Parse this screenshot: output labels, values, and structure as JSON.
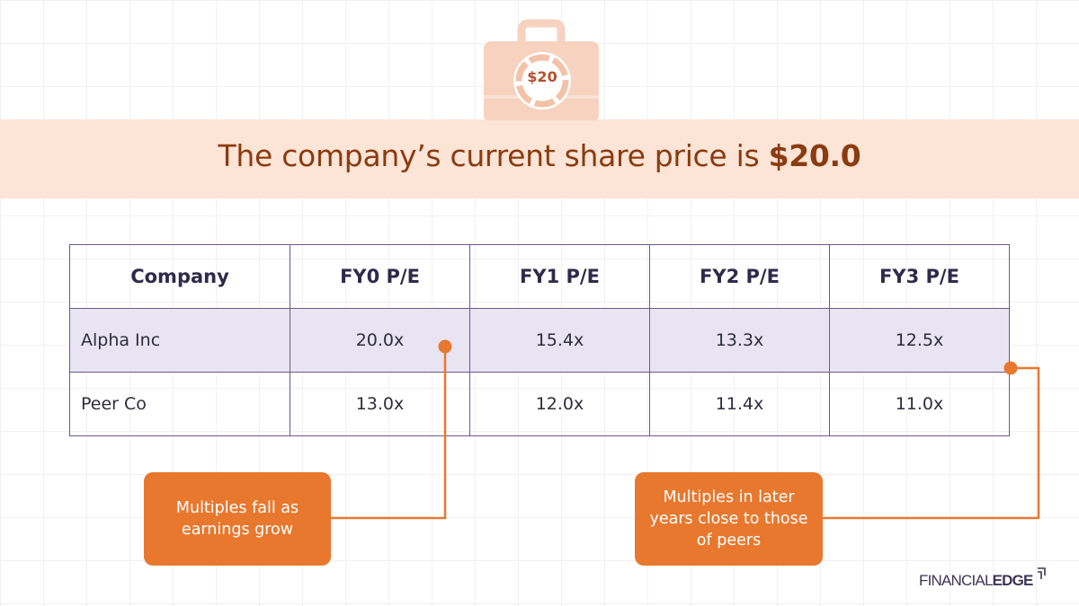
{
  "banner": {
    "title_prefix": "The company’s current share price is ",
    "title_value": "$20.0",
    "icon_label": "$20",
    "colors": {
      "band": "#fce4d6",
      "text": "#8a3b10",
      "icon": "#f6d2bf"
    }
  },
  "table": {
    "headers": [
      "Company",
      "FY0 P/E",
      "FY1 P/E",
      "FY2 P/E",
      "FY3 P/E"
    ],
    "rows": [
      {
        "name": "Alpha Inc",
        "values": [
          "20.0x",
          "15.4x",
          "13.3x",
          "12.5x"
        ]
      },
      {
        "name": "Peer Co",
        "values": [
          "13.0x",
          "12.0x",
          "11.4x",
          "11.0x"
        ]
      }
    ],
    "colors": {
      "border": "#6a5a8c",
      "highlight": "#e8e4f2"
    }
  },
  "callouts": [
    {
      "text": "Multiples fall as earnings grow"
    },
    {
      "text": "Multiples in later years close to those of peers"
    }
  ],
  "accent_color": "#e8782e",
  "logo": {
    "part1": "FINANCIAL",
    "part2": "EDGE"
  }
}
